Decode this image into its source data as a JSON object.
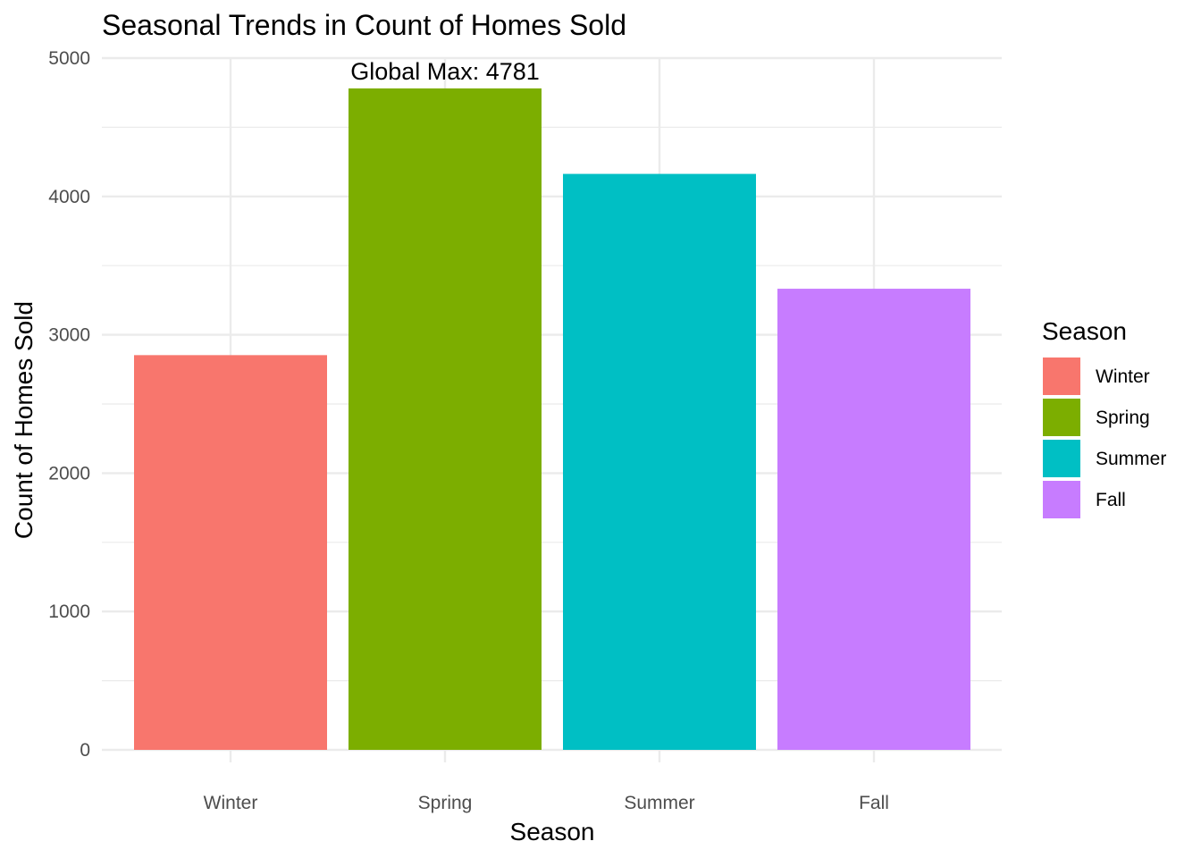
{
  "chart_data": {
    "type": "bar",
    "title": "Seasonal Trends in Count of Homes Sold",
    "xlabel": "Season",
    "ylabel": "Count of Homes Sold",
    "categories": [
      "Winter",
      "Spring",
      "Summer",
      "Fall"
    ],
    "values": [
      2853,
      4781,
      4163,
      3333
    ],
    "colors": [
      "#F8766D",
      "#7CAE00",
      "#00BFC4",
      "#C77CFF"
    ],
    "ylim": [
      0,
      5000
    ],
    "yticks": [
      0,
      1000,
      2000,
      3000,
      4000,
      5000
    ],
    "grid": true,
    "legend": {
      "title": "Season",
      "position": "right",
      "entries": [
        "Winter",
        "Spring",
        "Summer",
        "Fall"
      ]
    },
    "annotation": {
      "text": "Global Max: 4781",
      "category": "Spring",
      "value": 4781
    }
  }
}
